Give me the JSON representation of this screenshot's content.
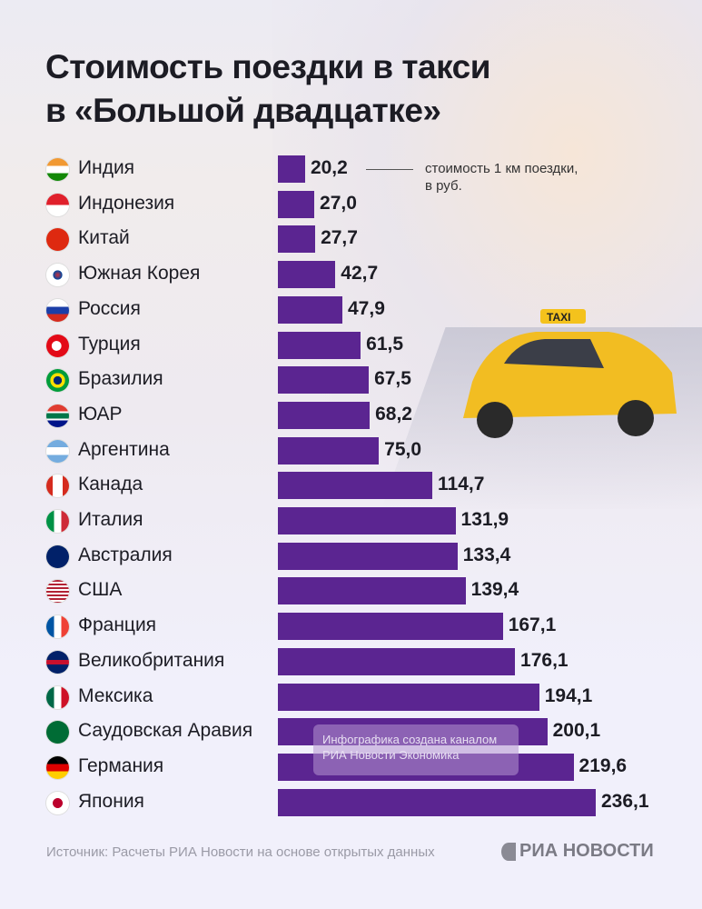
{
  "title_lines": [
    "Стоимость поездки в такси",
    "в «Большой двадцатке»"
  ],
  "note": [
    "стоимость 1 км поездки,",
    "в руб."
  ],
  "watermark": [
    "Инфографика создана каналом",
    "РИА Новости Экономика"
  ],
  "source": "Источник: Расчеты РИА Новости на основе открытых данных",
  "logo": "РИА НОВОСТИ",
  "colors": {
    "bar": "#5b2591",
    "text": "#1c1c24",
    "background": "#f1f0fb"
  },
  "chart_data": {
    "type": "bar",
    "orientation": "horizontal",
    "categories": [
      "Индия",
      "Индонезия",
      "Китай",
      "Южная Корея",
      "Россия",
      "Турция",
      "Бразилия",
      "ЮАР",
      "Аргентина",
      "Канада",
      "Италия",
      "Австралия",
      "США",
      "Франция",
      "Великобритания",
      "Мексика",
      "Саудовская Аравия",
      "Германия",
      "Япония"
    ],
    "values": [
      20.2,
      27.0,
      27.7,
      42.7,
      47.9,
      61.5,
      67.5,
      68.2,
      75.0,
      114.7,
      131.9,
      133.4,
      139.4,
      167.1,
      176.1,
      194.1,
      200.1,
      219.6,
      236.1
    ],
    "labels": [
      "20,2",
      "27,0",
      "27,7",
      "42,7",
      "47,9",
      "61,5",
      "67,5",
      "68,2",
      "75,0",
      "114,7",
      "131,9",
      "133,4",
      "139,4",
      "167,1",
      "176,1",
      "194,1",
      "200,1",
      "219,6",
      "236,1"
    ],
    "flag_icons": [
      "india-flag",
      "indonesia-flag",
      "china-flag",
      "south-korea-flag",
      "russia-flag",
      "turkey-flag",
      "brazil-flag",
      "south-africa-flag",
      "argentina-flag",
      "canada-flag",
      "italy-flag",
      "australia-flag",
      "usa-flag",
      "france-flag",
      "uk-flag",
      "mexico-flag",
      "saudi-arabia-flag",
      "germany-flag",
      "japan-flag"
    ],
    "grid": false,
    "legend": "none"
  }
}
